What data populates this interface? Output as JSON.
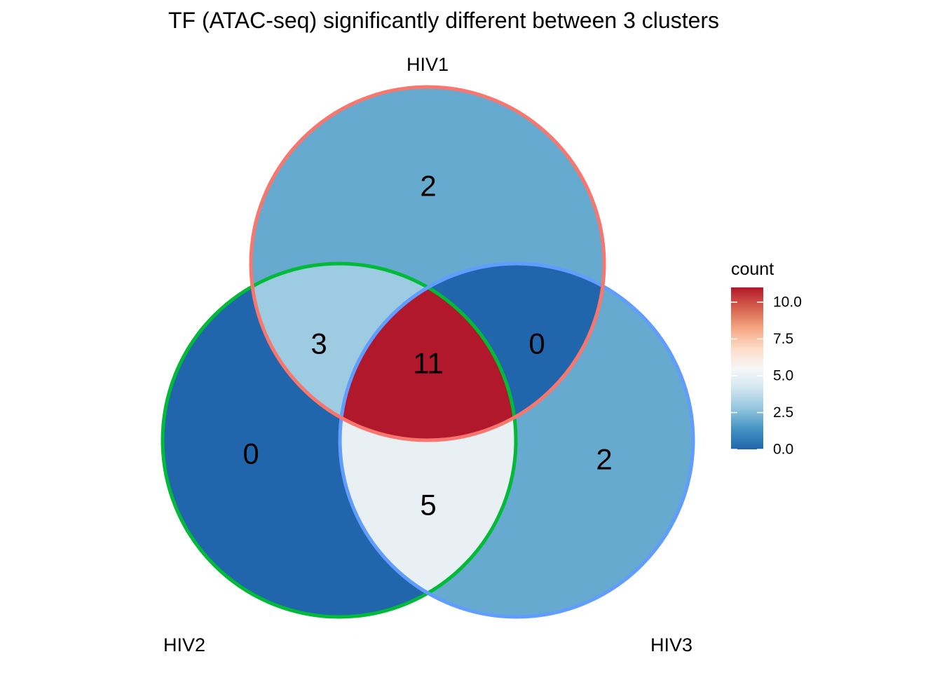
{
  "chart_data": {
    "type": "venn",
    "title": "TF (ATAC-seq) significantly different between 3 clusters",
    "sets": [
      {
        "name": "HIV1",
        "border_color": "#F8766D"
      },
      {
        "name": "HIV2",
        "border_color": "#00BA38"
      },
      {
        "name": "HIV3",
        "border_color": "#619CFF"
      }
    ],
    "regions": [
      {
        "sets": [
          "HIV1"
        ],
        "count": 2
      },
      {
        "sets": [
          "HIV2"
        ],
        "count": 0
      },
      {
        "sets": [
          "HIV3"
        ],
        "count": 2
      },
      {
        "sets": [
          "HIV1",
          "HIV2"
        ],
        "count": 3
      },
      {
        "sets": [
          "HIV1",
          "HIV3"
        ],
        "count": 0
      },
      {
        "sets": [
          "HIV2",
          "HIV3"
        ],
        "count": 5
      },
      {
        "sets": [
          "HIV1",
          "HIV2",
          "HIV3"
        ],
        "count": 11
      }
    ],
    "legend": {
      "title": "count",
      "placement": "right",
      "range": [
        0,
        11
      ],
      "ticks": [
        "0.0",
        "2.5",
        "5.0",
        "7.5",
        "10.0"
      ],
      "tick_values": [
        0,
        2.5,
        5,
        7.5,
        10
      ],
      "palette": "RdBu (reversed)",
      "color_stops": [
        "#2166AC",
        "#4393C3",
        "#92C5DE",
        "#D1E5F0",
        "#F7F7F7",
        "#FDDBC7",
        "#F4A582",
        "#D6604D",
        "#B2182B"
      ]
    }
  }
}
